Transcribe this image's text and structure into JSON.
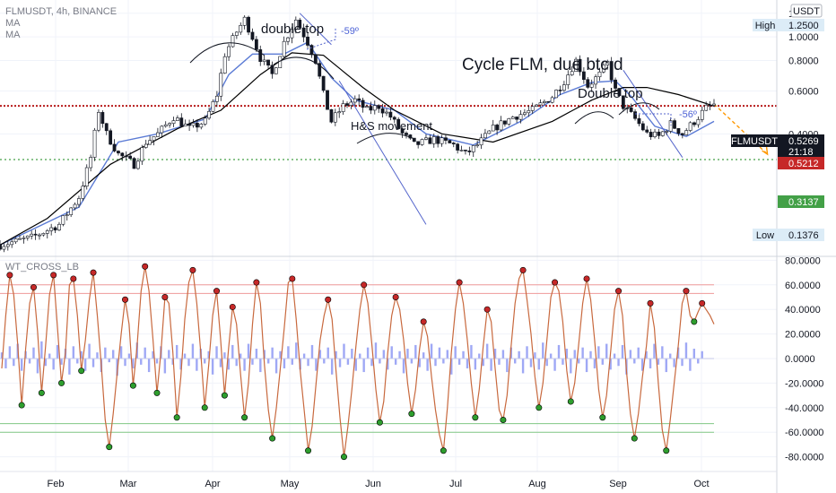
{
  "header": {
    "symbol_line": "FLMUSDT, 4h, BINANCE",
    "ma1": "MA",
    "ma2": "MA",
    "currency": "USDT",
    "indicator_name": "WT_CROSS_LB"
  },
  "colors": {
    "up": "#26a69a",
    "down": "#ef5350",
    "price_line": "#b71c1c",
    "support_line": "#43a047",
    "ma_fast": "#5b7bd5",
    "ma_slow": "#000000",
    "projection": "#ff9800",
    "wt1": "#c8693e",
    "histogram": "#9fa8f5",
    "cross_up": "#2e9e2e",
    "cross_down": "#c62828",
    "hl_box": "#dcecf7"
  },
  "annotations": {
    "title": "Cycle FLM, due btc.d",
    "double_top_1": "double top",
    "angle_1": "-59º",
    "double_top_2": "Double top",
    "angle_2": "-56º",
    "hs": "H&S movement"
  },
  "price_tags": {
    "high_label": "High",
    "high_value": "1.2500",
    "symbol": "FLMUSDT",
    "last_value": "0.5269",
    "countdown": "21:18",
    "level_value": "0.5212",
    "support_value": "0.3137",
    "low_label": "Low",
    "low_value": "0.1376"
  },
  "chart_data": [
    {
      "type": "candlestick",
      "title": "FLMUSDT, 4h, BINANCE",
      "scale": "log",
      "ylim": [
        0.13,
        1.28
      ],
      "x_ticks": [
        "Feb",
        "Mar",
        "Apr",
        "May",
        "Jun",
        "Jul",
        "Aug",
        "Sep",
        "Oct"
      ],
      "y_ticks": [
        "1.2500",
        "1.0000",
        "0.8000",
        "0.6000",
        "0.4000"
      ],
      "horizontal_levels": [
        0.5212,
        0.3137
      ],
      "high": 1.25,
      "low": 0.1376,
      "last": 0.5269,
      "close_path": [
        [
          0,
          0.14
        ],
        [
          8,
          0.15
        ],
        [
          15,
          0.17
        ],
        [
          20,
          0.22
        ],
        [
          23,
          0.32
        ],
        [
          25,
          0.5
        ],
        [
          27,
          0.4
        ],
        [
          30,
          0.33
        ],
        [
          34,
          0.3
        ],
        [
          37,
          0.37
        ],
        [
          40,
          0.4
        ],
        [
          44,
          0.47
        ],
        [
          48,
          0.42
        ],
        [
          52,
          0.45
        ],
        [
          55,
          0.58
        ],
        [
          57,
          0.85
        ],
        [
          60,
          1.05
        ],
        [
          62,
          1.18
        ],
        [
          64,
          1.0
        ],
        [
          66,
          0.82
        ],
        [
          69,
          0.7
        ],
        [
          72,
          0.95
        ],
        [
          75,
          1.18
        ],
        [
          78,
          0.95
        ],
        [
          80,
          0.8
        ],
        [
          82,
          0.58
        ],
        [
          84,
          0.45
        ],
        [
          87,
          0.52
        ],
        [
          90,
          0.55
        ],
        [
          93,
          0.5
        ],
        [
          96,
          0.52
        ],
        [
          99,
          0.47
        ],
        [
          102,
          0.4
        ],
        [
          105,
          0.36
        ],
        [
          110,
          0.38
        ],
        [
          115,
          0.36
        ],
        [
          118,
          0.33
        ],
        [
          121,
          0.36
        ],
        [
          125,
          0.42
        ],
        [
          130,
          0.47
        ],
        [
          135,
          0.5
        ],
        [
          140,
          0.57
        ],
        [
          143,
          0.66
        ],
        [
          146,
          0.8
        ],
        [
          149,
          0.63
        ],
        [
          152,
          0.7
        ],
        [
          154,
          0.78
        ],
        [
          156,
          0.6
        ],
        [
          158,
          0.52
        ],
        [
          161,
          0.46
        ],
        [
          164,
          0.4
        ],
        [
          167,
          0.39
        ],
        [
          170,
          0.44
        ],
        [
          173,
          0.4
        ],
        [
          176,
          0.45
        ],
        [
          179,
          0.51
        ],
        [
          181,
          0.5269
        ]
      ],
      "moving_averages": [
        {
          "points": [
            [
              0,
              0.14
            ],
            [
              20,
              0.2
            ],
            [
              30,
              0.37
            ],
            [
              40,
              0.4
            ],
            [
              52,
              0.46
            ],
            [
              58,
              0.7
            ],
            [
              64,
              0.85
            ],
            [
              72,
              0.85
            ],
            [
              78,
              0.95
            ],
            [
              84,
              0.68
            ],
            [
              90,
              0.55
            ],
            [
              100,
              0.5
            ],
            [
              108,
              0.4
            ],
            [
              120,
              0.36
            ],
            [
              132,
              0.45
            ],
            [
              142,
              0.58
            ],
            [
              150,
              0.65
            ],
            [
              156,
              0.66
            ],
            [
              160,
              0.57
            ],
            [
              166,
              0.43
            ],
            [
              174,
              0.39
            ],
            [
              181,
              0.45
            ]
          ]
        },
        {
          "points": [
            [
              0,
              0.14
            ],
            [
              12,
              0.18
            ],
            [
              28,
              0.3
            ],
            [
              45,
              0.42
            ],
            [
              56,
              0.5
            ],
            [
              66,
              0.7
            ],
            [
              74,
              0.86
            ],
            [
              82,
              0.84
            ],
            [
              92,
              0.62
            ],
            [
              100,
              0.5
            ],
            [
              112,
              0.4
            ],
            [
              125,
              0.37
            ],
            [
              140,
              0.45
            ],
            [
              150,
              0.55
            ],
            [
              158,
              0.62
            ],
            [
              164,
              0.62
            ],
            [
              172,
              0.58
            ],
            [
              181,
              0.52
            ]
          ]
        }
      ],
      "projection": [
        [
          181,
          0.53
        ],
        [
          190,
          0.33
        ]
      ],
      "trendlines": [
        [
          [
            76,
            1.25
          ],
          [
            84,
            0.93
          ]
        ],
        [
          [
            86,
            0.66
          ],
          [
            108,
            0.17
          ]
        ],
        [
          [
            158,
            0.73
          ],
          [
            173,
            0.32
          ]
        ]
      ]
    },
    {
      "type": "line",
      "title": "WT_CROSS_LB",
      "xlim": [
        0,
        181
      ],
      "ylim": [
        -85,
        85
      ],
      "y_ticks": [
        "80.0000",
        "60.0000",
        "40.0000",
        "20.0000",
        "0.0000",
        "-20.0000",
        "-40.0000",
        "-60.0000",
        "-80.0000"
      ],
      "levels": [
        60,
        53,
        -53,
        -60
      ],
      "series": [
        {
          "values": [
            -8,
            35,
            68,
            52,
            12,
            -38,
            8,
            45,
            58,
            22,
            -28,
            10,
            52,
            68,
            25,
            -20,
            5,
            60,
            65,
            35,
            -10,
            15,
            48,
            70,
            35,
            -5,
            -50,
            -72,
            -45,
            -12,
            20,
            48,
            28,
            -22,
            10,
            55,
            75,
            55,
            15,
            -28,
            5,
            50,
            45,
            5,
            -48,
            -15,
            32,
            62,
            72,
            45,
            5,
            -40,
            -5,
            35,
            55,
            15,
            -30,
            8,
            42,
            28,
            -12,
            -48,
            -20,
            28,
            62,
            45,
            -5,
            -42,
            -65,
            -40,
            -8,
            25,
            62,
            65,
            32,
            -10,
            -42,
            -75,
            -55,
            -20,
            15,
            35,
            48,
            32,
            -10,
            -48,
            -80,
            -55,
            -25,
            10,
            40,
            60,
            45,
            12,
            -25,
            -52,
            -35,
            5,
            35,
            50,
            40,
            15,
            -20,
            -45,
            -25,
            8,
            30,
            18,
            -15,
            -42,
            -62,
            -75,
            -40,
            5,
            40,
            62,
            45,
            15,
            -20,
            -48,
            -25,
            10,
            40,
            30,
            -8,
            -42,
            -50,
            -30,
            10,
            45,
            65,
            72,
            48,
            20,
            -15,
            -40,
            -20,
            15,
            50,
            62,
            55,
            30,
            -10,
            -35,
            -20,
            12,
            45,
            65,
            48,
            15,
            -25,
            -48,
            -30,
            5,
            40,
            55,
            35,
            -10,
            -45,
            -65,
            -45,
            -15,
            10,
            45,
            25,
            -20,
            -58,
            -75,
            -50,
            -20,
            10,
            45,
            55,
            35,
            30,
            38,
            45,
            40,
            35,
            28
          ]
        },
        {
          "values": [
            5,
            -8,
            10,
            -6,
            12,
            -10,
            6,
            -4,
            9,
            -12,
            14,
            -6,
            4,
            -9,
            11,
            -5,
            8,
            -13,
            10,
            -4,
            6,
            -10,
            12,
            -7,
            5,
            -11,
            9,
            -3,
            7,
            -14,
            10,
            -6,
            4,
            -8,
            13,
            -5,
            9,
            -11,
            6,
            -4,
            10,
            -12,
            7,
            -5,
            11,
            -9,
            4,
            -6,
            12,
            -10,
            8,
            -4,
            6,
            -13,
            10,
            -7,
            5,
            -9,
            11,
            -6,
            4,
            -10,
            12,
            -5,
            8,
            -11,
            7,
            -4,
            9,
            -12,
            6,
            -8,
            10,
            -5,
            13,
            -9,
            4,
            -6,
            11,
            -10,
            7,
            -4,
            9,
            -13,
            6,
            -7,
            12,
            -5,
            8,
            -10,
            4,
            -11,
            9,
            -6,
            13,
            -4,
            7,
            -9,
            10,
            -5,
            6,
            -12,
            8,
            -4,
            11,
            -7,
            5,
            -10,
            12,
            -6,
            9,
            -4,
            7,
            -13,
            10,
            -5,
            6,
            -8,
            11,
            -9,
            4,
            -6,
            12,
            -10,
            8,
            -5,
            7,
            -11,
            9,
            -4,
            6,
            -12,
            10,
            -7,
            5,
            -9,
            13,
            -6,
            4,
            -10,
            11,
            -5,
            8,
            -12,
            7,
            -4,
            9,
            -11,
            6,
            -8,
            10,
            -5,
            12,
            -9,
            4,
            -6,
            11,
            -13,
            7,
            -4,
            9,
            -10,
            6,
            -8,
            12,
            -5,
            10,
            -11,
            4,
            -7,
            9,
            -6,
            13,
            -10,
            8,
            -4,
            6
          ]
        }
      ]
    }
  ]
}
